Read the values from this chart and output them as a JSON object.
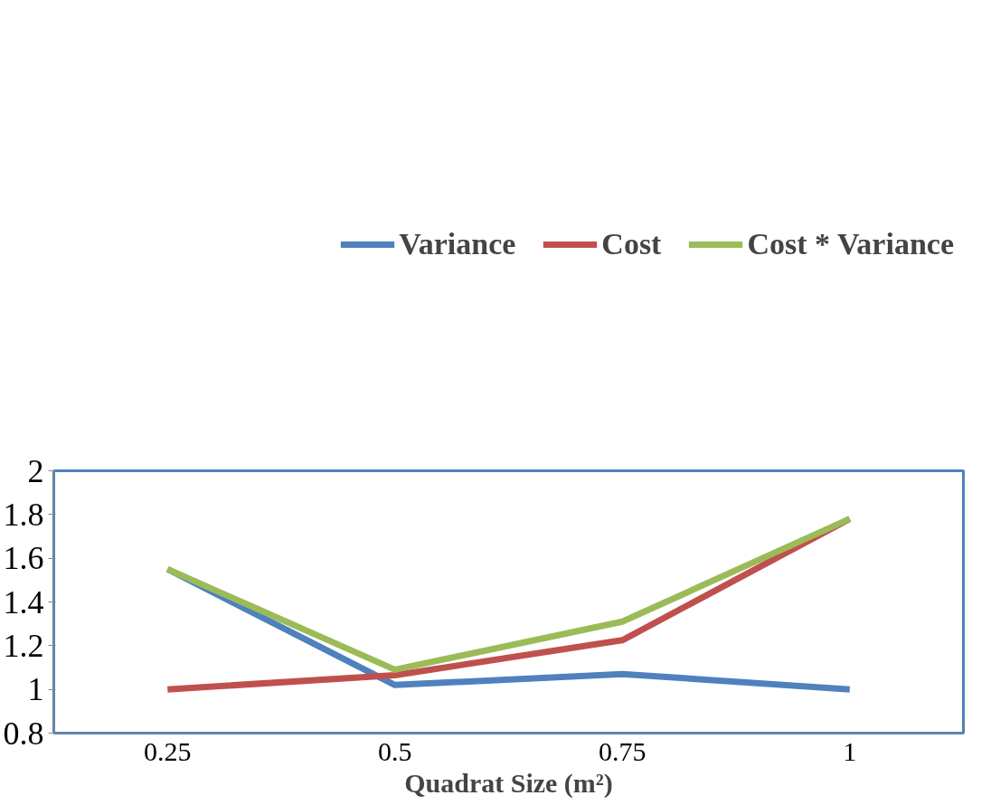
{
  "chart_data": {
    "type": "line",
    "xlabel": "Quadrat Size (m²)",
    "categories": [
      "0.25",
      "0.5",
      "0.75",
      "1"
    ],
    "series": [
      {
        "name": "Variance",
        "color": "#4f81bd",
        "values": [
          1.55,
          1.02,
          1.07,
          1.0
        ]
      },
      {
        "name": "Cost",
        "color": "#c0504d",
        "values": [
          1.0,
          1.065,
          1.225,
          1.78
        ]
      },
      {
        "name": "Cost * Variance",
        "color": "#9bbb59",
        "values": [
          1.55,
          1.09,
          1.31,
          1.78
        ]
      }
    ],
    "ylim": [
      0.8,
      2
    ],
    "yticks": [
      0.8,
      1,
      1.2,
      1.4,
      1.6,
      1.8,
      2
    ],
    "grid": false,
    "legend": "top",
    "marker": "none",
    "line_style": "solid"
  }
}
